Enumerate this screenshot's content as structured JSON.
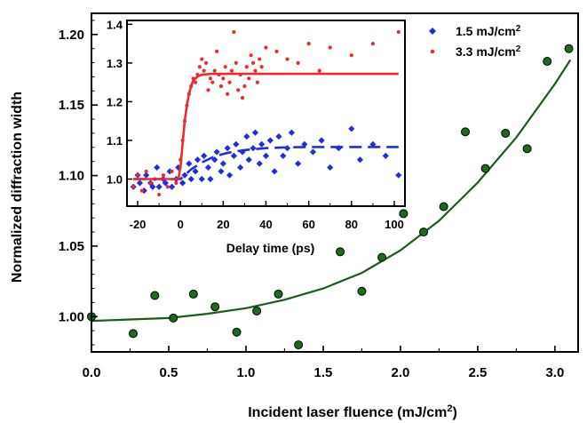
{
  "chart_data": [
    {
      "type": "scatter",
      "title": "",
      "xlabel": "Incident laser fluence (mJ/cm",
      "xlabel_sup": "2",
      "xlabel_suffix": ")",
      "ylabel": "Normalized diffraction width",
      "xlim": [
        0,
        3.15
      ],
      "ylim": [
        0.975,
        1.215
      ],
      "x_ticks": [
        "0.0",
        "0.5",
        "1.0",
        "1.5",
        "2.0",
        "2.5",
        "3.0"
      ],
      "x_tick_values": [
        0,
        0.5,
        1.0,
        1.5,
        2.0,
        2.5,
        3.0
      ],
      "y_ticks": [
        "1.00",
        "1.05",
        "1.10",
        "1.15",
        "1.20"
      ],
      "y_tick_values": [
        1.0,
        1.05,
        1.1,
        1.15,
        1.2
      ],
      "grid": false,
      "series": [
        {
          "marker_color": "#1a6b1a",
          "x": [
            0.0,
            0.27,
            0.41,
            0.53,
            0.66,
            0.8,
            0.94,
            1.07,
            1.21,
            1.34,
            1.61,
            1.75,
            1.88,
            2.02,
            2.15,
            2.28,
            2.42,
            2.55,
            2.68,
            2.82,
            2.95,
            3.09
          ],
          "y": [
            1.0,
            0.988,
            1.015,
            0.999,
            1.016,
            1.007,
            0.989,
            1.004,
            1.016,
            0.98,
            1.046,
            1.018,
            1.042,
            1.073,
            1.06,
            1.078,
            1.131,
            1.105,
            1.13,
            1.119,
            1.181,
            1.19
          ]
        }
      ],
      "fit_curve": {
        "color": "#1a5c1a",
        "x": [
          0.0,
          0.25,
          0.5,
          0.75,
          1.0,
          1.25,
          1.5,
          1.75,
          2.0,
          2.25,
          2.5,
          2.75,
          3.0,
          3.1
        ],
        "y": [
          0.997,
          0.998,
          0.999,
          1.002,
          1.006,
          1.012,
          1.02,
          1.031,
          1.047,
          1.068,
          1.095,
          1.127,
          1.165,
          1.182
        ]
      }
    },
    {
      "type": "scatter",
      "title": "",
      "xlabel": "Delay time (ps)",
      "ylabel": "",
      "xlim": [
        -25,
        105
      ],
      "ylim": [
        0.93,
        1.41
      ],
      "x_ticks": [
        "-20",
        "0",
        "20",
        "40",
        "60",
        "80",
        "100"
      ],
      "x_tick_values": [
        -20,
        0,
        20,
        40,
        60,
        80,
        100
      ],
      "y_ticks": [
        "1.0",
        "1.1",
        "1.2",
        "1.3",
        "1.4"
      ],
      "y_tick_values": [
        1.0,
        1.1,
        1.2,
        1.3,
        1.4
      ],
      "legend_position": "top-right-outside",
      "series": [
        {
          "name": "1.5 mJ/cm",
          "name_sup": "2",
          "color": "#1f2fe0",
          "marker": "diamond",
          "x": [
            -22,
            -20,
            -19,
            -17,
            -16,
            -14,
            -13,
            -11,
            -10,
            -8,
            -7,
            -5,
            -4,
            -2,
            -1,
            1,
            2,
            4,
            5,
            7,
            8,
            10,
            11,
            13,
            14,
            16,
            17,
            19,
            20,
            22,
            23,
            25,
            26,
            28,
            29,
            31,
            32,
            34,
            35,
            37,
            38,
            40,
            42,
            44,
            46,
            48,
            50,
            52,
            55,
            58,
            62,
            66,
            70,
            74,
            80,
            84,
            90,
            96,
            102
          ],
          "y": [
            0.98,
            1.01,
            0.99,
            0.97,
            1.01,
            0.99,
            0.98,
            1.03,
            0.98,
            1.0,
            0.99,
            1.02,
            0.98,
            1.0,
            1.03,
            0.99,
            1.01,
            1.04,
            1.0,
            1.02,
            1.05,
            1.0,
            1.06,
            1.03,
            1.0,
            1.05,
            1.07,
            1.02,
            1.04,
            1.08,
            1.01,
            1.06,
            1.09,
            1.03,
            1.07,
            1.11,
            1.05,
            1.08,
            1.12,
            1.04,
            1.09,
            1.06,
            1.1,
            1.02,
            1.11,
            1.06,
            1.08,
            1.12,
            1.04,
            1.09,
            1.07,
            1.1,
            1.03,
            1.08,
            1.13,
            1.05,
            1.09,
            1.06,
            1.01
          ]
        },
        {
          "name": "3.3 mJ/cm",
          "name_sup": "2",
          "color": "#ee2a2a",
          "marker": "dot",
          "x": [
            -22,
            -20,
            -18,
            -16,
            -14,
            -12,
            -10,
            -8,
            -6,
            -4,
            -2,
            0,
            1,
            2,
            3,
            4,
            5,
            6,
            7,
            8,
            9,
            10,
            11,
            12,
            13,
            14,
            15,
            16,
            17,
            18,
            19,
            20,
            21,
            22,
            23,
            24,
            25,
            26,
            27,
            28,
            29,
            30,
            31,
            32,
            33,
            34,
            35,
            36,
            37,
            38,
            40,
            45,
            50,
            55,
            60,
            65,
            70,
            80,
            90,
            102
          ],
          "y": [
            0.98,
            1.01,
            0.97,
            1.02,
            0.99,
            1.0,
            0.96,
            1.01,
            0.98,
            1.02,
            0.99,
            1.05,
            1.1,
            1.15,
            1.19,
            1.22,
            1.24,
            1.26,
            1.25,
            1.27,
            1.29,
            1.31,
            1.28,
            1.3,
            1.23,
            1.26,
            1.25,
            1.28,
            1.33,
            1.27,
            1.24,
            1.26,
            1.29,
            1.22,
            1.25,
            1.28,
            1.38,
            1.3,
            1.23,
            1.27,
            1.21,
            1.24,
            1.29,
            1.26,
            1.32,
            1.3,
            1.28,
            1.25,
            1.31,
            1.29,
            1.34,
            1.33,
            1.31,
            1.3,
            1.35,
            1.28,
            1.34,
            1.32,
            1.35,
            1.38
          ]
        }
      ],
      "fit_curves": [
        {
          "series": "1.5 mJ/cm2",
          "style": "dashed",
          "color": "#1f2fe0",
          "x": [
            -22,
            0,
            5,
            10,
            15,
            20,
            25,
            30,
            40,
            50,
            60,
            80,
            102
          ],
          "y": [
            1.0,
            1.0,
            1.025,
            1.043,
            1.056,
            1.065,
            1.071,
            1.075,
            1.08,
            1.082,
            1.083,
            1.083,
            1.083
          ]
        },
        {
          "series": "3.3 mJ/cm2",
          "style": "solid",
          "color": "#ee2a2a",
          "x": [
            -22,
            -1,
            0,
            1,
            2,
            3,
            4,
            5,
            6,
            8,
            10,
            15,
            20,
            40,
            102
          ],
          "y": [
            1.0,
            1.0,
            1.03,
            1.09,
            1.15,
            1.19,
            1.22,
            1.24,
            1.255,
            1.265,
            1.27,
            1.272,
            1.272,
            1.272,
            1.272
          ]
        }
      ]
    }
  ]
}
